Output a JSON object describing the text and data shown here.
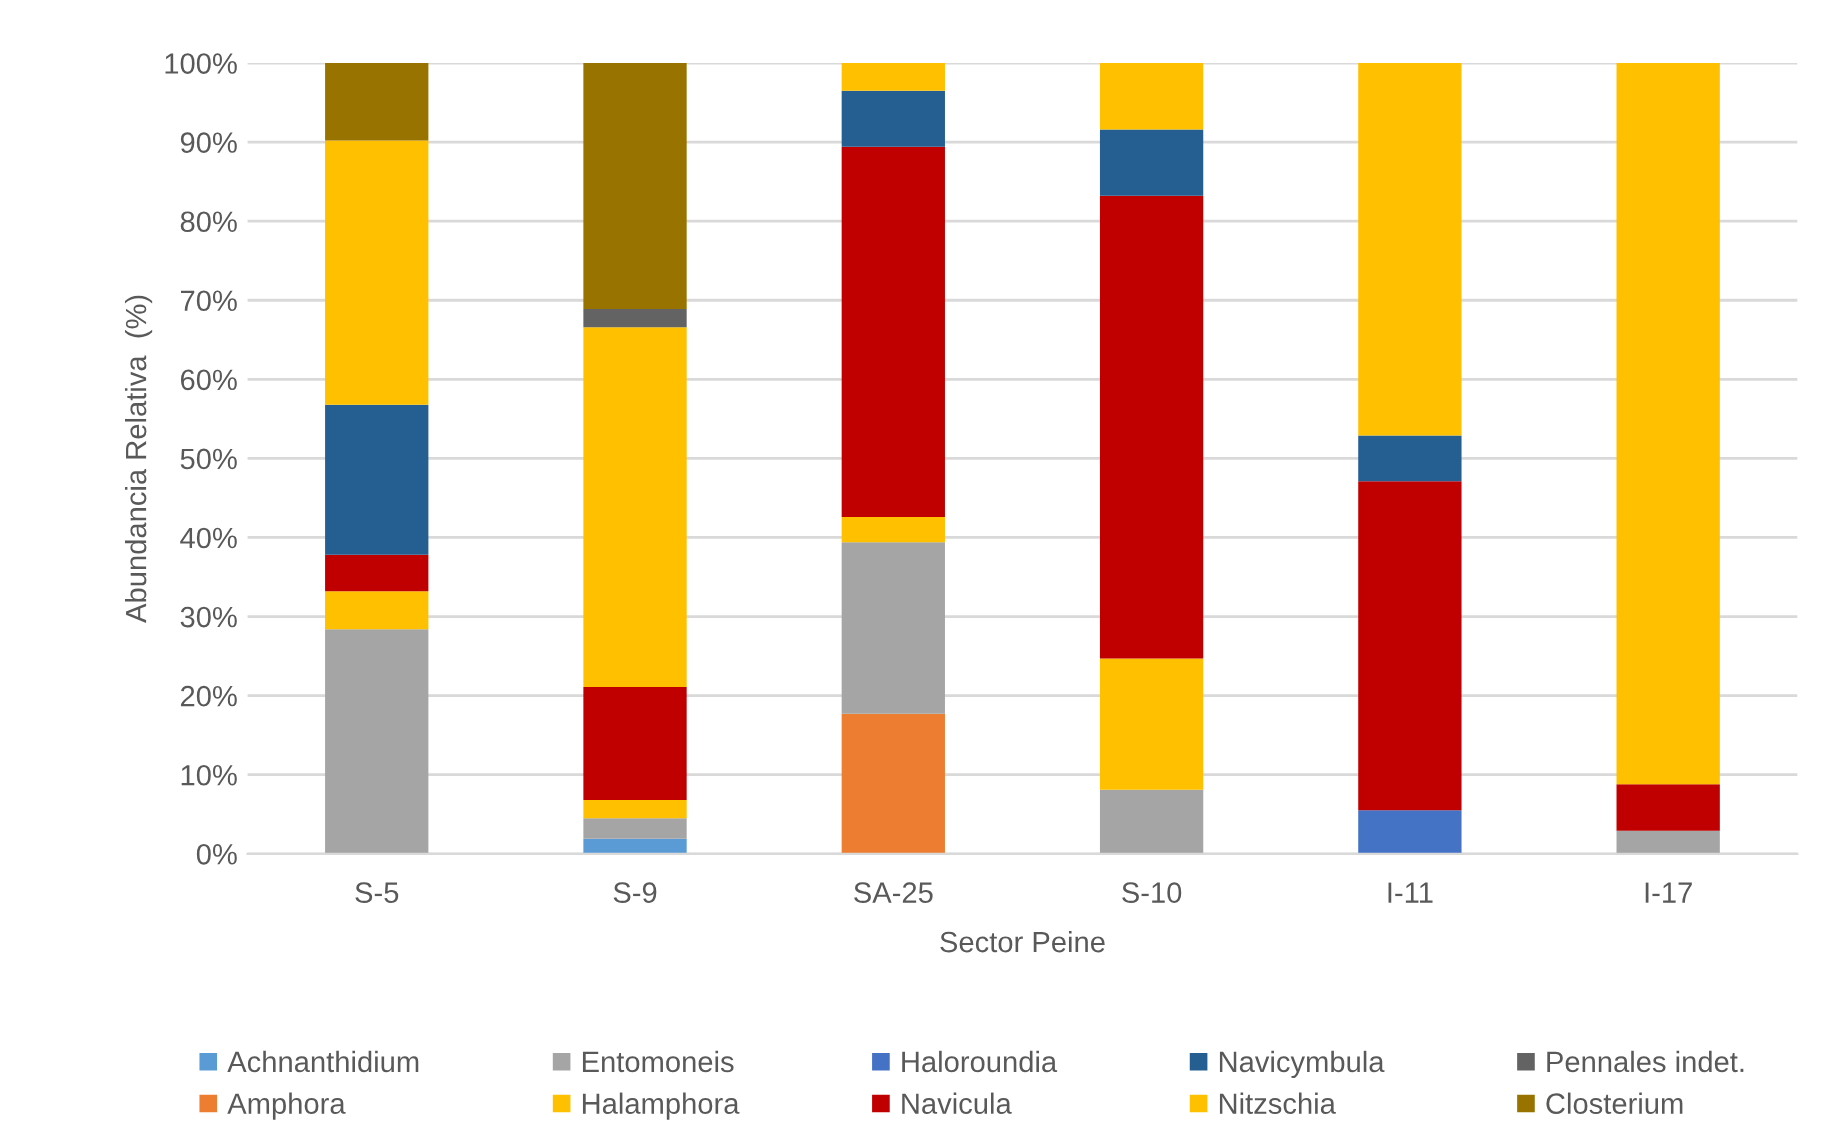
{
  "chart_data": {
    "type": "bar",
    "stacked": true,
    "xlabel": "Sector Peine",
    "ylabel": "Abundancia Relativa  (%)",
    "categories": [
      "S-5",
      "S-9",
      "SA-25",
      "S-10",
      "I-11",
      "I-17"
    ],
    "series": [
      {
        "name": "Achnanthidium",
        "color": "#5b9bd5",
        "values": [
          null,
          1.9,
          null,
          null,
          null,
          null
        ]
      },
      {
        "name": "Amphora",
        "color": "#ed7d31",
        "values": [
          null,
          null,
          17.7,
          null,
          null,
          null
        ]
      },
      {
        "name": "Entomoneis",
        "color": "#a5a5a5",
        "values": [
          28.4,
          2.6,
          21.7,
          8.1,
          null,
          2.9
        ]
      },
      {
        "name": "Halamphora",
        "color": "#ffc000",
        "values": [
          4.8,
          2.3,
          3.2,
          16.6,
          null,
          null
        ]
      },
      {
        "name": "Haloroundia",
        "color": "#4472c4",
        "values": [
          null,
          null,
          null,
          null,
          5.5,
          null
        ]
      },
      {
        "name": "Navicula",
        "color": "#c00000",
        "values": [
          4.6,
          14.3,
          46.8,
          58.5,
          41.6,
          5.9
        ]
      },
      {
        "name": "Navicymbula",
        "color": "#255e91",
        "values": [
          19.0,
          null,
          7.1,
          8.4,
          5.8,
          null
        ]
      },
      {
        "name": "Nitzschia",
        "color": "#ffc000",
        "values": [
          33.4,
          45.5,
          3.5,
          8.4,
          47.1,
          91.2
        ]
      },
      {
        "name": "Pennales indet.",
        "color": "#636363",
        "values": [
          null,
          2.3,
          null,
          null,
          null,
          null
        ]
      },
      {
        "name": "Closterium",
        "color": "#997300",
        "values": [
          9.8,
          31.1,
          null,
          null,
          null,
          null
        ]
      }
    ],
    "ylim": [
      0,
      100
    ],
    "yticks": [
      {
        "value": 0,
        "label": "0%"
      },
      {
        "value": 10,
        "label": "10%"
      },
      {
        "value": 20,
        "label": "20%"
      },
      {
        "value": 30,
        "label": "30%"
      },
      {
        "value": 40,
        "label": "40%"
      },
      {
        "value": 50,
        "label": "50%"
      },
      {
        "value": 60,
        "label": "60%"
      },
      {
        "value": 70,
        "label": "70%"
      },
      {
        "value": 80,
        "label": "80%"
      },
      {
        "value": 90,
        "label": "90%"
      },
      {
        "value": 100,
        "label": "100%"
      }
    ],
    "grid": "y",
    "legend": "bottom"
  }
}
